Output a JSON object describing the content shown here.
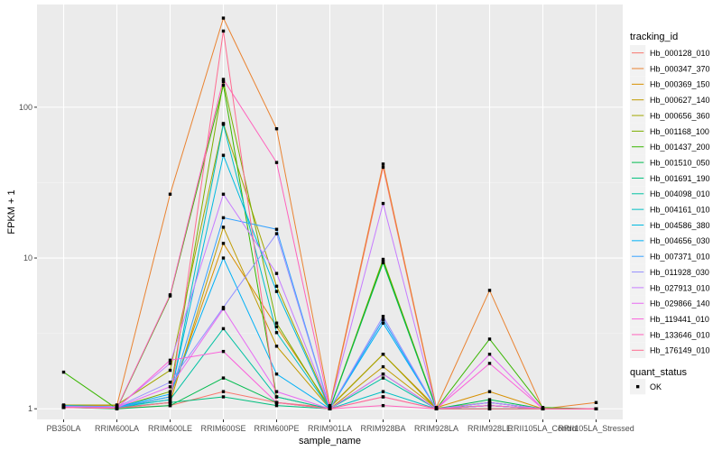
{
  "chart_data": {
    "type": "line",
    "title": "",
    "xlabel": "sample_name",
    "ylabel": "FPKM + 1",
    "y_scale": "log10",
    "ylim": [
      0.85,
      480
    ],
    "grid": true,
    "categories": [
      "PB350LA",
      "RRIM600LA",
      "RRIM600LE",
      "RRIM600SE",
      "RRIM600PE",
      "RRIM901LA",
      "RRIM928BA",
      "RRIM928LA",
      "RRIM928LE",
      "RRII105LA_Control",
      "RRII105LA_Stressed"
    ],
    "y_ticks": [
      1,
      10,
      100
    ],
    "y_tick_labels": [
      "1",
      "10",
      "100"
    ],
    "legend_title": "tracking_id",
    "legend_position": "right",
    "shape_legend_title": "quant_status",
    "shape_legend_items": [
      "OK"
    ],
    "series": [
      {
        "name": "Hb_000128_010",
        "color": "#F8766D",
        "values": [
          1.02,
          1.01,
          1.05,
          1.3,
          1.1,
          1.02,
          40,
          1.0,
          1.05,
          1.0,
          1.0
        ]
      },
      {
        "name": "Hb_000347_370",
        "color": "#EA8331",
        "values": [
          1.05,
          1.05,
          26.5,
          390,
          72,
          1.05,
          42,
          1.02,
          6.1,
          1.0,
          1.1
        ]
      },
      {
        "name": "Hb_000369_150",
        "color": "#D89000",
        "values": [
          1.03,
          1.02,
          1.2,
          12.5,
          3.5,
          1.03,
          2.3,
          1.02,
          1.3,
          1.0,
          1.0
        ]
      },
      {
        "name": "Hb_000627_140",
        "color": "#C09B00",
        "values": [
          1.02,
          1.01,
          1.1,
          16,
          2.6,
          1.0,
          1.9,
          1.01,
          1.1,
          1.0,
          1.0
        ]
      },
      {
        "name": "Hb_000656_360",
        "color": "#A3A500",
        "values": [
          1.06,
          1.06,
          1.8,
          78,
          6.5,
          1.02,
          2.3,
          1.0,
          1.0,
          1.0,
          1.0
        ]
      },
      {
        "name": "Hb_001168_100",
        "color": "#7CAE00",
        "values": [
          1.05,
          1.02,
          1.3,
          148,
          3.7,
          1.0,
          9.8,
          1.01,
          1.05,
          1.0,
          1.0
        ]
      },
      {
        "name": "Hb_001437_200",
        "color": "#39B600",
        "values": [
          1.75,
          1.0,
          5.6,
          140,
          1.2,
          1.0,
          9.5,
          1.0,
          2.9,
          1.02,
          1.0
        ]
      },
      {
        "name": "Hb_001510_050",
        "color": "#00BB4E",
        "values": [
          1.02,
          1.0,
          1.05,
          1.6,
          1.1,
          1.0,
          9.3,
          1.0,
          1.15,
          1.0,
          1.0
        ]
      },
      {
        "name": "Hb_001691_190",
        "color": "#00BF7D",
        "values": [
          1.03,
          1.02,
          1.1,
          1.2,
          1.05,
          1.0,
          1.7,
          1.0,
          1.0,
          1.0,
          1.0
        ]
      },
      {
        "name": "Hb_004098_010",
        "color": "#00C1A3",
        "values": [
          1.04,
          1.03,
          1.15,
          3.4,
          1.2,
          1.0,
          1.6,
          1.0,
          1.05,
          1.0,
          1.0
        ]
      },
      {
        "name": "Hb_004161_010",
        "color": "#00BFC4",
        "values": [
          1.03,
          1.02,
          1.15,
          77,
          3.2,
          1.0,
          1.3,
          1.0,
          1.1,
          1.0,
          1.0
        ]
      },
      {
        "name": "Hb_004586_380",
        "color": "#00BAE0",
        "values": [
          1.04,
          1.03,
          1.2,
          48,
          6.0,
          1.0,
          3.9,
          1.0,
          1.1,
          1.0,
          1.0
        ]
      },
      {
        "name": "Hb_004656_030",
        "color": "#00B0F6",
        "values": [
          1.05,
          1.03,
          1.25,
          10,
          1.7,
          1.0,
          3.7,
          1.0,
          1.05,
          1.0,
          1.0
        ]
      },
      {
        "name": "Hb_007371_010",
        "color": "#35A2FF",
        "values": [
          1.03,
          1.02,
          1.2,
          18.5,
          15.5,
          1.0,
          3.9,
          1.0,
          1.05,
          1.0,
          1.0
        ]
      },
      {
        "name": "Hb_011928_030",
        "color": "#9590FF",
        "values": [
          1.04,
          1.03,
          1.5,
          4.7,
          14.5,
          1.0,
          4.1,
          1.0,
          1.05,
          1.0,
          1.0
        ]
      },
      {
        "name": "Hb_027913_010",
        "color": "#C77CFF",
        "values": [
          1.03,
          1.02,
          2.0,
          26.5,
          7.9,
          1.03,
          23,
          1.0,
          1.1,
          1.0,
          1.0
        ]
      },
      {
        "name": "Hb_029866_140",
        "color": "#E76BF3",
        "values": [
          1.02,
          1.02,
          1.4,
          4.6,
          1.3,
          1.0,
          1.7,
          1.0,
          2.3,
          1.0,
          1.0
        ]
      },
      {
        "name": "Hb_119441_010",
        "color": "#FA62DB",
        "values": [
          1.02,
          1.01,
          2.1,
          2.4,
          1.1,
          1.0,
          1.2,
          1.0,
          2.0,
          1.0,
          1.0
        ]
      },
      {
        "name": "Hb_133646_010",
        "color": "#FF62BC",
        "values": [
          1.02,
          1.01,
          5.7,
          153,
          43,
          1.0,
          1.05,
          1.0,
          1.05,
          1.0,
          1.0
        ]
      },
      {
        "name": "Hb_176149_010",
        "color": "#FF6C91",
        "values": [
          1.02,
          1.01,
          1.1,
          320,
          1.1,
          1.0,
          1.2,
          1.0,
          1.0,
          1.0,
          1.0
        ]
      }
    ]
  }
}
